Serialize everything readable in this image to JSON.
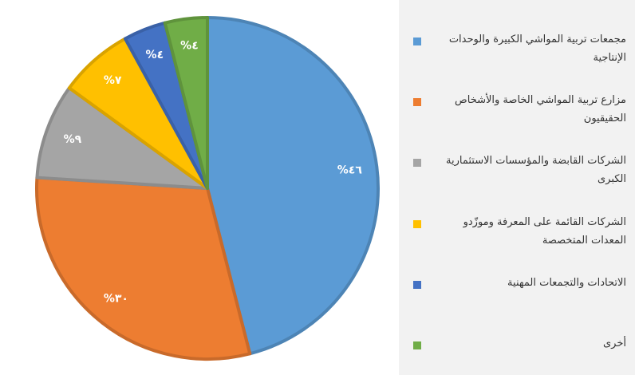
{
  "chart_data": {
    "type": "pie",
    "categories": [
      "مجمعات تربية المواشي الكبيرة والوحدات الإنتاجية",
      "مزارع تربية المواشي الخاصة والأشخاص الحقيقيون",
      "الشركات القابضة والمؤسسات الاستثمارية الكبرى",
      "الشركات القائمة على المعرفة وموزّدو المعدات المتخصصة",
      "الاتحادات والتجمعات المهنية",
      "أخرى"
    ],
    "values": [
      46,
      30,
      9,
      7,
      4,
      4
    ],
    "value_labels": [
      "%٤٦",
      "%٣٠",
      "%٩",
      "%٧",
      "%٤",
      "%٤"
    ],
    "colors": [
      "#5b9bd5",
      "#ed7d31",
      "#a5a5a5",
      "#ffc000",
      "#4472c4",
      "#70ad47"
    ],
    "legend": "right"
  }
}
